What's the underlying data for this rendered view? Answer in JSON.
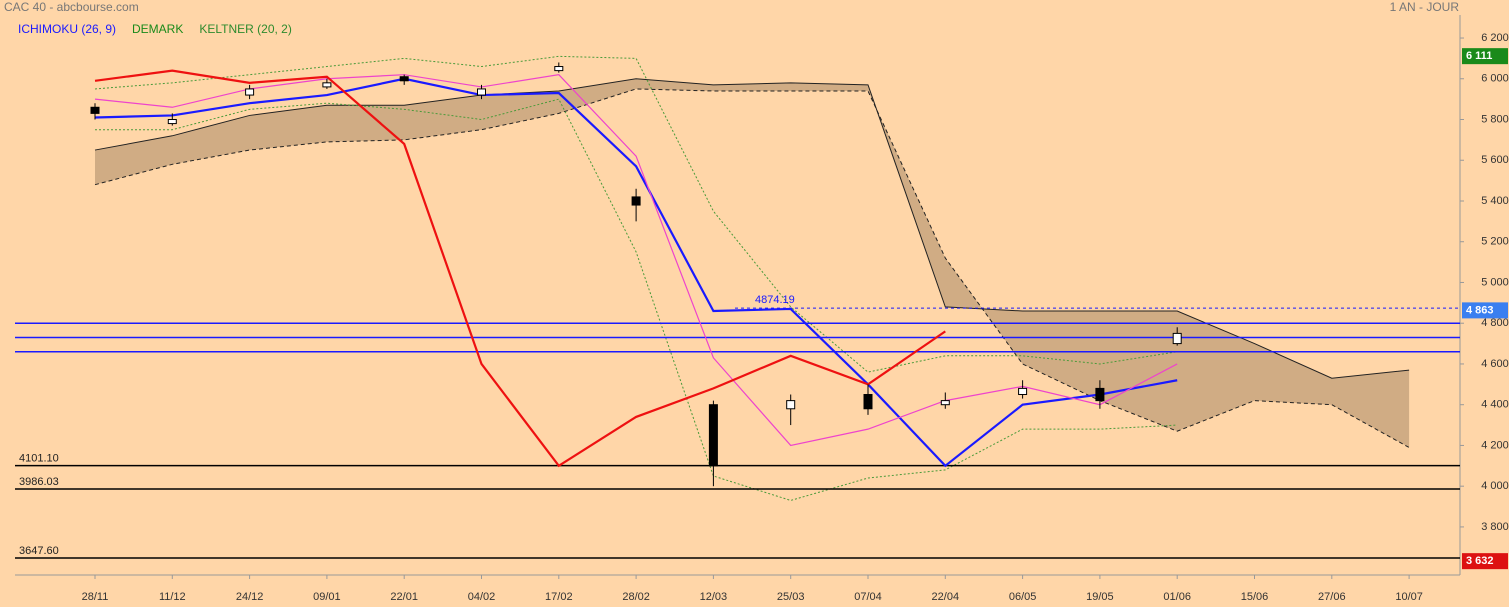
{
  "chart_data": {
    "type": "candlestick",
    "title": "CAC 40 - abcbourse.com",
    "period": "1 AN - JOUR",
    "indicators": [
      {
        "name": "ICHIMOKU (26, 9)",
        "color": "#1a1aff"
      },
      {
        "name": "DEMARK",
        "color": "#1a8a1a"
      },
      {
        "name": "KELTNER (20, 2)",
        "color": "#2e8b2e"
      }
    ],
    "categories": [
      "28/11",
      "11/12",
      "24/12",
      "09/01",
      "22/01",
      "04/02",
      "17/02",
      "28/02",
      "12/03",
      "25/03",
      "07/04",
      "22/04",
      "06/05",
      "19/05",
      "01/06",
      "15/06",
      "27/06",
      "10/07"
    ],
    "ylim": [
      3564,
      6313
    ],
    "yticks": [
      {
        "value": 3800,
        "label": "3 800"
      },
      {
        "value": 4000,
        "label": "4 000"
      },
      {
        "value": 4200,
        "label": "4 200"
      },
      {
        "value": 4400,
        "label": "4 400"
      },
      {
        "value": 4600,
        "label": "4 600"
      },
      {
        "value": 4800,
        "label": "4 800"
      },
      {
        "value": 5000,
        "label": "5 000"
      },
      {
        "value": 5200,
        "label": "5 200"
      },
      {
        "value": 5400,
        "label": "5 400"
      },
      {
        "value": 5600,
        "label": "5 600"
      },
      {
        "value": 5800,
        "label": "5 800"
      },
      {
        "value": 6000,
        "label": "6 000"
      },
      {
        "value": 6200,
        "label": "6 200"
      }
    ],
    "candles": {
      "open": [
        5860,
        5780,
        5920,
        5960,
        6010,
        5920,
        6040,
        5420,
        4400,
        4380,
        4450,
        4400,
        4450,
        4480,
        4700,
        null,
        null,
        null
      ],
      "high": [
        5880,
        5830,
        5970,
        6000,
        6020,
        5970,
        6080,
        5460,
        4420,
        4450,
        4500,
        4460,
        4520,
        4520,
        4780,
        null,
        null,
        null
      ],
      "low": [
        5800,
        5770,
        5900,
        5950,
        5970,
        5900,
        6030,
        5300,
        4000,
        4300,
        4350,
        4380,
        4430,
        4380,
        4690,
        null,
        null,
        null
      ],
      "close": [
        5830,
        5800,
        5950,
        5980,
        5990,
        5950,
        6060,
        5380,
        4100,
        4420,
        4380,
        4420,
        4480,
        4420,
        4750,
        null,
        null,
        null
      ]
    },
    "series": [
      {
        "name": "kijun",
        "color": "#1a1aff",
        "width": 2.2,
        "values": [
          5810,
          5820,
          5880,
          5920,
          6000,
          5920,
          5930,
          5570,
          4860,
          4870,
          4500,
          4100,
          4400,
          4450,
          4520,
          null,
          null,
          null
        ]
      },
      {
        "name": "tenkan",
        "color": "#ee44cc",
        "width": 1.2,
        "values": [
          5900,
          5860,
          5950,
          6000,
          6020,
          5960,
          6020,
          5620,
          4630,
          4200,
          4280,
          4420,
          4490,
          4400,
          4600,
          null,
          null,
          null
        ]
      },
      {
        "name": "chikou",
        "color": "#ee1111",
        "width": 2.2,
        "values": [
          5990,
          6040,
          5980,
          6010,
          5680,
          4600,
          4100,
          4340,
          4480,
          4640,
          4500,
          4760,
          null,
          null,
          null,
          null,
          null,
          null
        ]
      }
    ],
    "cloud": {
      "color": "#c8a47e",
      "span_a": [
        5650,
        5720,
        5820,
        5870,
        5870,
        5920,
        5940,
        6000,
        5970,
        5980,
        5970,
        4880,
        4860,
        4860,
        4860,
        4700,
        4530,
        4570
      ],
      "span_b": [
        5480,
        5580,
        5650,
        5690,
        5700,
        5750,
        5830,
        5950,
        5940,
        5940,
        5940,
        5120,
        4600,
        4420,
        4270,
        4420,
        4400,
        4190
      ]
    },
    "keltner": {
      "color": "#4a9a3a",
      "upper": [
        5950,
        5980,
        6020,
        6060,
        6100,
        6060,
        6110,
        6100,
        5350,
        4880,
        4560,
        4640,
        4640,
        4600,
        4660,
        null,
        null,
        null
      ],
      "lower": [
        5750,
        5750,
        5850,
        5880,
        5850,
        5800,
        5900,
        5150,
        4050,
        3930,
        4040,
        4080,
        4280,
        4280,
        4300,
        null,
        null,
        null
      ]
    },
    "levels": [
      {
        "value": 4101.1,
        "label": "4101.10"
      },
      {
        "value": 3986.03,
        "label": "3986.03"
      },
      {
        "value": 3647.6,
        "label": "3647.60"
      }
    ],
    "blue_levels": [
      4800,
      4730,
      4660
    ],
    "resistance": {
      "value": 4874.19,
      "label": "4874.19"
    },
    "price_tags": [
      {
        "value": 6111,
        "label": "6 111",
        "color": "#1a8a1a"
      },
      {
        "value": 4863,
        "label": "4 863",
        "color": "#3a7ff0"
      },
      {
        "value": 3632,
        "label": "3 632",
        "color": "#dd1111"
      }
    ]
  }
}
